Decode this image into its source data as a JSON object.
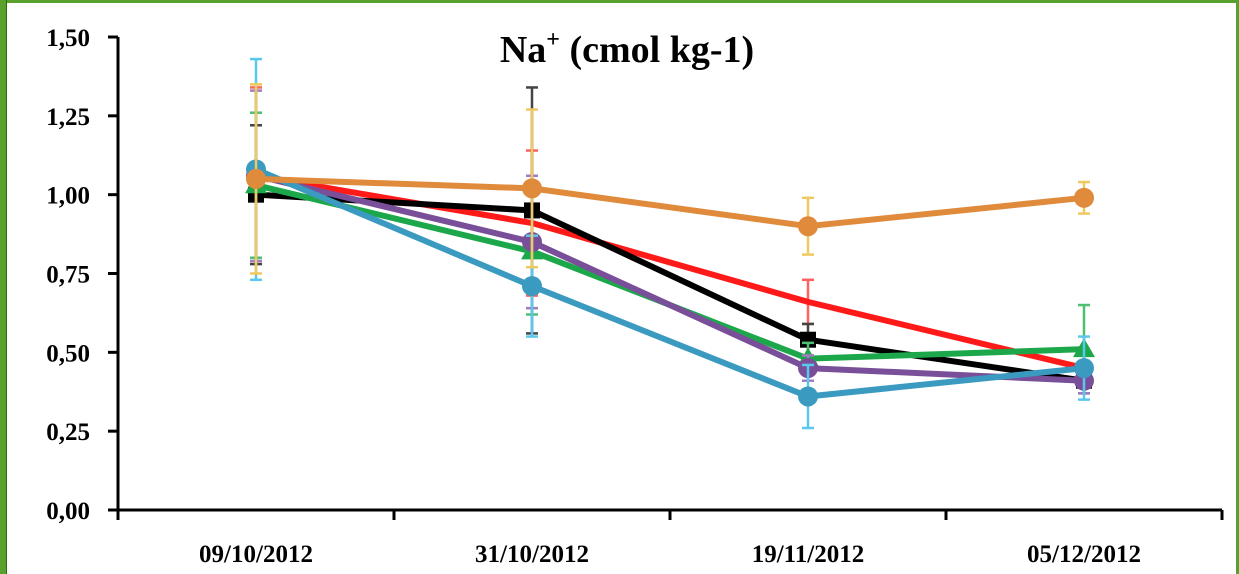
{
  "chart_data": {
    "type": "line",
    "title": {
      "main": "Na",
      "superscript": "+",
      "rest": " (cmol kg-1)"
    },
    "categories": [
      "09/10/2012",
      "31/10/2012",
      "19/11/2012",
      "05/12/2012"
    ],
    "ylim": [
      0,
      1.5
    ],
    "y_ticks": [
      "0,00",
      "0,25",
      "0,50",
      "0,75",
      "1,00",
      "1,25",
      "1,50"
    ],
    "grid": false,
    "legend": "none",
    "series": [
      {
        "color": "#ff1a1a",
        "bar_color": "#ff6060",
        "marker": "none",
        "values": [
          1.06,
          0.91,
          0.66,
          0.45
        ],
        "errors": [
          0.28,
          0.23,
          0.07,
          0.05
        ]
      },
      {
        "color": "#000000",
        "bar_color": "#444444",
        "marker": "square",
        "values": [
          1.0,
          0.95,
          0.54,
          0.41
        ],
        "errors": [
          0.22,
          0.39,
          0.05,
          0.04
        ]
      },
      {
        "color": "#1ca84a",
        "bar_color": "#4cc070",
        "marker": "triangle",
        "values": [
          1.03,
          0.82,
          0.48,
          0.51
        ],
        "errors": [
          0.23,
          0.2,
          0.05,
          0.14
        ]
      },
      {
        "color": "#7a4f9a",
        "bar_color": "#a27cc0",
        "marker": "circle",
        "values": [
          1.06,
          0.85,
          0.45,
          0.41
        ],
        "errors": [
          0.27,
          0.21,
          0.04,
          0.04
        ]
      },
      {
        "color": "#3a9ac0",
        "bar_color": "#5ac8ee",
        "marker": "circle",
        "values": [
          1.08,
          0.71,
          0.36,
          0.45
        ],
        "errors": [
          0.35,
          0.16,
          0.1,
          0.1
        ]
      },
      {
        "color": "#e08a3c",
        "bar_color": "#f0c860",
        "marker": "circle",
        "values": [
          1.05,
          1.02,
          0.9,
          0.99
        ],
        "errors": [
          0.3,
          0.25,
          0.09,
          0.05
        ]
      }
    ]
  }
}
